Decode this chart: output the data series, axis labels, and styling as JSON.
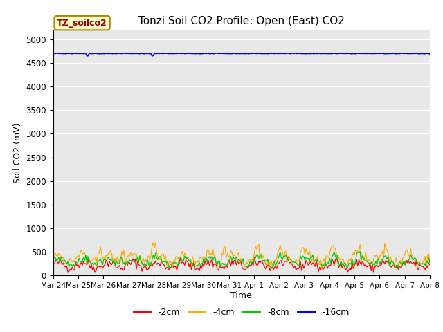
{
  "title": "Tonzi Soil CO2 Profile: Open (East) CO2",
  "ylabel": "Soil CO2 (mV)",
  "xlabel": "Time",
  "ylim": [
    0,
    5200
  ],
  "yticks": [
    0,
    500,
    1000,
    1500,
    2000,
    2500,
    3000,
    3500,
    4000,
    4500,
    5000
  ],
  "bg_color": "#e8e8e8",
  "fig_color": "#ffffff",
  "legend_label": "TZ_soilco2",
  "legend_box_color": "#ffffcc",
  "legend_box_edge": "#aa8800",
  "legend_text_color": "#990000",
  "series_colors": [
    "#ff0000",
    "#ffaa00",
    "#00cc00",
    "#0000ff"
  ],
  "series_labels": [
    "-2cm",
    "-4cm",
    "-8cm",
    "-16cm"
  ],
  "x_tick_labels": [
    "Mar 24",
    "Mar 25",
    "Mar 26",
    "Mar 27",
    "Mar 28",
    "Mar 29",
    "Mar 30",
    "Mar 31",
    "Apr 1",
    "Apr 2",
    "Apr 3",
    "Apr 4",
    "Apr 5",
    "Apr 6",
    "Apr 7",
    "Apr 8"
  ],
  "n_points": 336,
  "seed": 42
}
